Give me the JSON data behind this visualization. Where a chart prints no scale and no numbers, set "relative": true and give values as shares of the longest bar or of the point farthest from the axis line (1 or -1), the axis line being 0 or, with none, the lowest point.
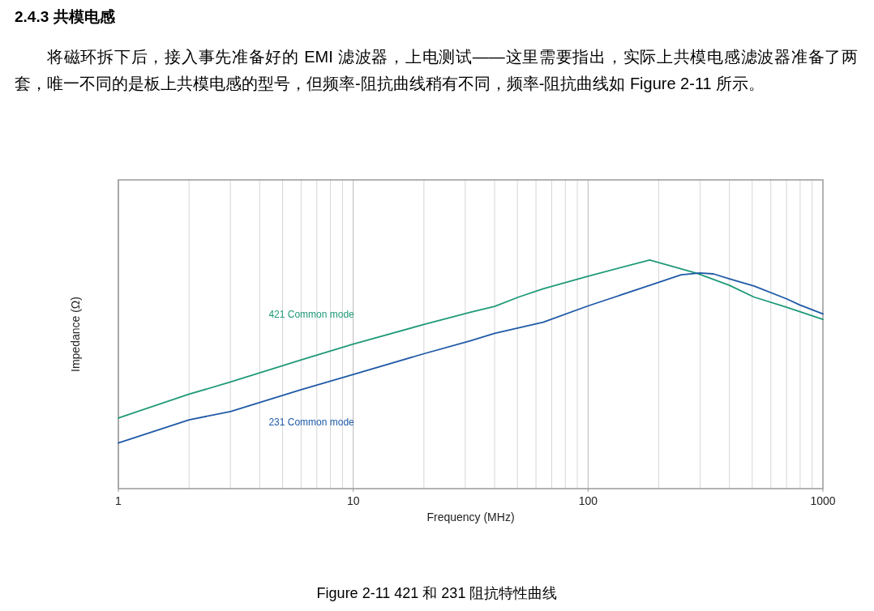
{
  "chart_data": {
    "type": "line",
    "title": "2.4.3 共模电感",
    "subtitle": "将磁环拆下后，接入事先准备好的 EMI 滤波器，上电测试——这里需要指出，实际上共模电感滤波器准备了两套，唯一不同的是板上共模电感的型号，但频率-阻抗曲线稍有不同，频率-阻抗曲线如 Figure 2-11 所示。",
    "xlabel": "Frequency (MHz)",
    "ylabel": "Impedance (Ω)",
    "annotations": [
      "Figure 2-11 421 和 231 阻抗特性曲线"
    ],
    "relative": true,
    "log": "x",
    "xlim": [
      1,
      1000
    ],
    "xticks": [
      1,
      10,
      100,
      1000
    ],
    "grid": "x",
    "legend": false,
    "series": [
      {
        "name": "421 Common mode",
        "color": "#1f9a78",
        "x": [
          1,
          2,
          3,
          6,
          10,
          20,
          31.5,
          40,
          50.7,
          64.4,
          100,
          183,
          291.5,
          400,
          508,
          700,
          1000
        ],
        "values": [
          0.309,
          0.413,
          0.466,
          0.563,
          0.632,
          0.718,
          0.771,
          0.797,
          0.838,
          0.874,
          0.929,
          1.0,
          0.941,
          0.889,
          0.838,
          0.793,
          0.74
        ]
      },
      {
        "name": "231 Common mode",
        "color": "#1f5aa6",
        "x": [
          1,
          2,
          3,
          6,
          10,
          20,
          31.5,
          40,
          64.4,
          100,
          183,
          249,
          300,
          342,
          400,
          508,
          700,
          798,
          1000
        ],
        "values": [
          0.2,
          0.301,
          0.337,
          0.433,
          0.499,
          0.59,
          0.646,
          0.679,
          0.728,
          0.799,
          0.889,
          0.935,
          0.943,
          0.939,
          0.917,
          0.886,
          0.83,
          0.803,
          0.764
        ]
      }
    ]
  }
}
